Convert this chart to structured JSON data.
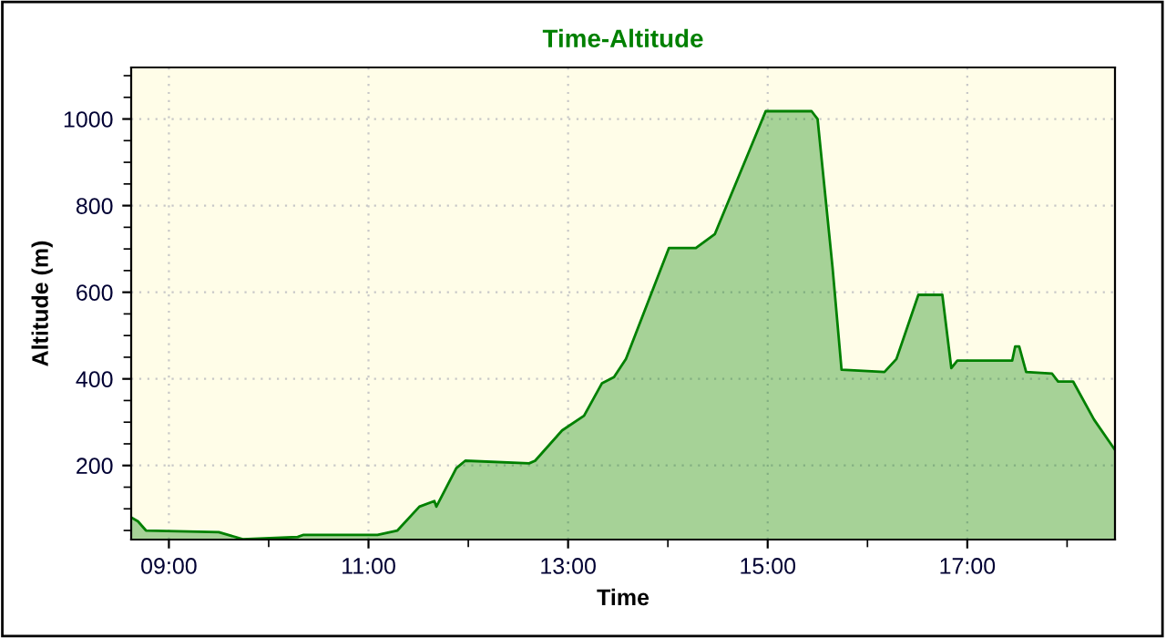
{
  "chart_data": {
    "type": "area",
    "title": "Time-Altitude",
    "xlabel": "Time",
    "ylabel": "Altitude (m)",
    "xlim": [
      8.622,
      18.48
    ],
    "ylim": [
      29,
      1119
    ],
    "xticks": [
      {
        "value": 9,
        "label": "09:00"
      },
      {
        "value": 10,
        "label": null
      },
      {
        "value": 11,
        "label": "11:00"
      },
      {
        "value": 12,
        "label": null
      },
      {
        "value": 13,
        "label": "13:00"
      },
      {
        "value": 14,
        "label": null
      },
      {
        "value": 15,
        "label": "15:00"
      },
      {
        "value": 16,
        "label": null
      },
      {
        "value": 17,
        "label": "17:00"
      },
      {
        "value": 18,
        "label": null
      }
    ],
    "yticks": [
      {
        "value": 50,
        "label": null
      },
      {
        "value": 100,
        "label": null
      },
      {
        "value": 150,
        "label": null
      },
      200,
      {
        "value": 250,
        "label": null
      },
      {
        "value": 300,
        "label": null
      },
      {
        "value": 350,
        "label": null
      },
      400,
      {
        "value": 450,
        "label": null
      },
      {
        "value": 500,
        "label": null
      },
      {
        "value": 550,
        "label": null
      },
      600,
      {
        "value": 650,
        "label": null
      },
      {
        "value": 700,
        "label": null
      },
      {
        "value": 750,
        "label": null
      },
      800,
      {
        "value": 850,
        "label": null
      },
      {
        "value": 900,
        "label": null
      },
      {
        "value": 950,
        "label": null
      },
      1000,
      {
        "value": 1050,
        "label": null
      },
      {
        "value": 1100,
        "label": null
      }
    ],
    "grid": true,
    "series": [
      {
        "color": "#008000",
        "x": [
          8.63,
          8.69,
          8.77,
          9.5,
          9.74,
          10.29,
          10.35,
          11.09,
          11.29,
          11.51,
          11.66,
          11.68,
          11.88,
          11.97,
          12.61,
          12.67,
          12.94,
          13.16,
          13.34,
          13.46,
          13.58,
          14.01,
          14.28,
          14.47,
          14.98,
          15.44,
          15.5,
          15.65,
          15.74,
          16.17,
          16.29,
          16.51,
          16.75,
          16.84,
          16.9,
          17.45,
          17.48,
          17.52,
          17.59,
          17.85,
          17.91,
          18.06,
          18.27,
          18.48
        ],
        "values": [
          79,
          71,
          50,
          46,
          30,
          35,
          40,
          40,
          50,
          105,
          118,
          105,
          194,
          211,
          205,
          211,
          281,
          315,
          390,
          404,
          446,
          702,
          702,
          734,
          1018,
          1018,
          1000,
          657,
          421,
          416,
          446,
          594,
          594,
          425,
          442,
          442,
          475,
          475,
          416,
          412,
          394,
          394,
          306,
          236
        ]
      }
    ]
  }
}
